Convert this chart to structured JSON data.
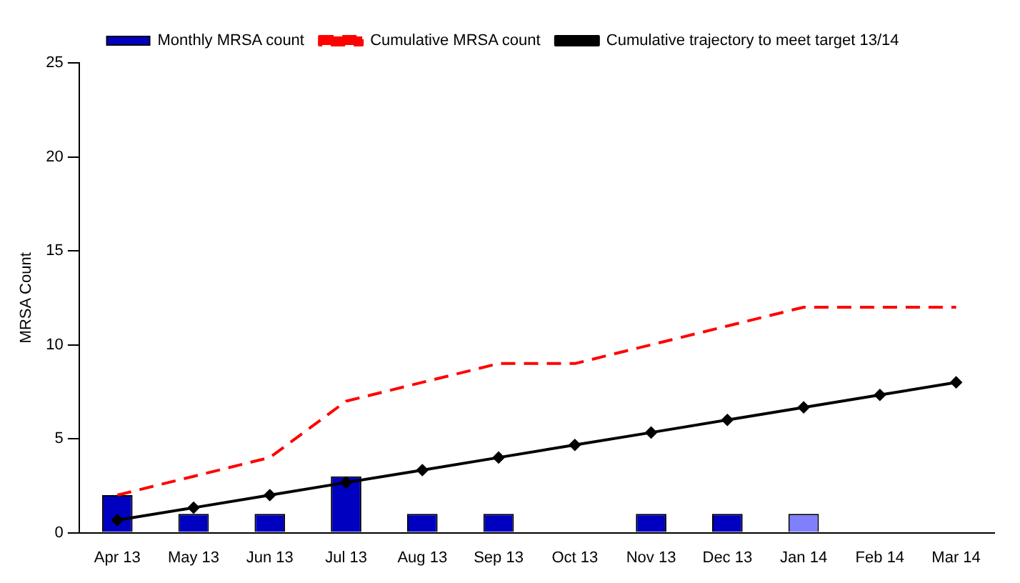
{
  "chart_data": {
    "type": "bar",
    "ylabel": "MRSA Count",
    "categories": [
      "Apr 13",
      "May 13",
      "Jun 13",
      "Jul 13",
      "Aug 13",
      "Sep 13",
      "Oct 13",
      "Nov 13",
      "Dec 13",
      "Jan 14",
      "Feb 14",
      "Mar 14"
    ],
    "series": [
      {
        "name": "Monthly MRSA count",
        "color": "#0000c0",
        "colors": [
          "#0000c0",
          "#0000c0",
          "#0000c0",
          "#0000c0",
          "#0000c0",
          "#0000c0",
          "#0000c0",
          "#0000c0",
          "#0000c0",
          "#8080ff",
          null,
          null
        ],
        "values": [
          2,
          1,
          1,
          3,
          1,
          1,
          0,
          1,
          1,
          1,
          null,
          null
        ]
      },
      {
        "name": "Cumulative MRSA count",
        "type": "line",
        "color": "#ff0000",
        "line_style": "dashed",
        "marker": "none",
        "values": [
          2,
          3,
          4,
          7,
          8,
          9,
          9,
          10,
          11,
          12,
          12,
          12
        ]
      },
      {
        "name": "Cumulative trajectory to meet target 13/14",
        "type": "line",
        "color": "#000000",
        "line_style": "solid",
        "marker": "diamond",
        "values": [
          0.67,
          1.33,
          2,
          2.67,
          3.33,
          4,
          4.67,
          5.33,
          6,
          6.67,
          7.33,
          8
        ]
      }
    ],
    "ylim": [
      0,
      25
    ],
    "yticks": [
      0,
      5,
      10,
      15,
      20,
      25
    ],
    "grid": false,
    "legend": "top"
  }
}
